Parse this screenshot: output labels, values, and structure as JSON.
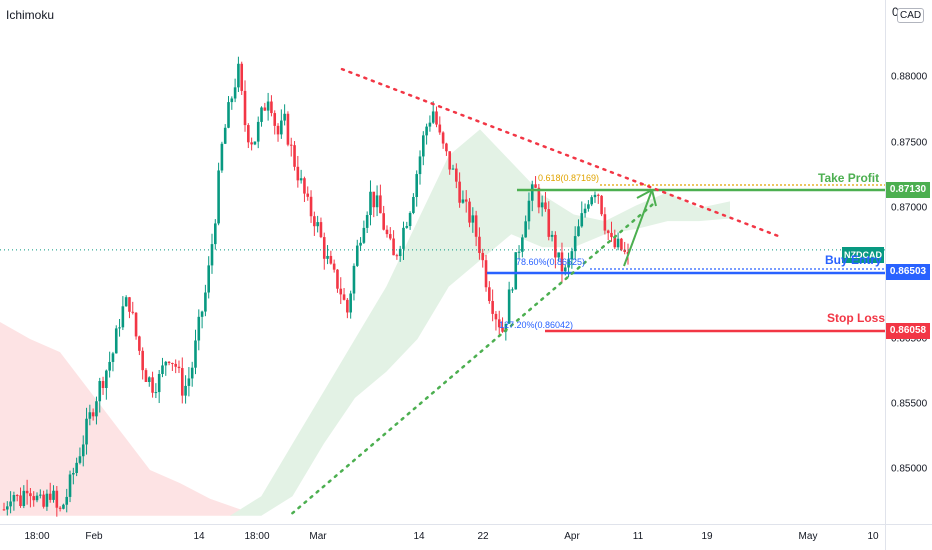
{
  "indicator": {
    "name": "Ichimoku"
  },
  "price_scale": {
    "zero_label": "0",
    "currency": "CAD"
  },
  "symbol": {
    "name": "NZDCAD"
  },
  "levels": {
    "take_profit": {
      "label": "Take Profit",
      "tag": "0.87130",
      "price": 0.8713,
      "color": "#4caf50"
    },
    "buy_entry": {
      "label": "Buy Entry",
      "tag": "0.86503",
      "price": 0.86503,
      "color": "#2962ff"
    },
    "stop_loss": {
      "label": "Stop Loss",
      "tag": "0.86058",
      "price": 0.86058,
      "color": "#f23645"
    }
  },
  "fib_labels": {
    "f618": {
      "text": "0.618(0.87169)",
      "color": "#e0a400"
    },
    "f786": {
      "text": "78.60%(0.86525)",
      "color": "#2962ff"
    },
    "f1272": {
      "text": "127.20%(0.86042)",
      "color": "#2962ff"
    }
  },
  "colors": {
    "up_candle": "#089981",
    "down_candle": "#f23645",
    "cloud_bull": "#e3f2e5",
    "cloud_bear": "#fde3e4",
    "resistance_line": "#f23645",
    "support_line": "#4caf50",
    "arrow": "#4caf50",
    "current_price_line": "#089981"
  },
  "chart_data": {
    "type": "candlestick",
    "title": "",
    "ylim": [
      0.8465,
      0.8835
    ],
    "y_ticks": [
      "0.88000",
      "0.87500",
      "0.87000",
      "0.86500",
      "0.85500",
      "0.85000"
    ],
    "x_ticks": [
      "18:00",
      "Feb",
      "14",
      "18:00",
      "Mar",
      "14",
      "22",
      "Apr",
      "11",
      "19",
      "May",
      "10"
    ],
    "current_price": 0.8668,
    "trend_lines": [
      {
        "name": "descending resistance",
        "from": [
          0.3864,
          0.8806
        ],
        "to": [
          0.8817,
          0.8678
        ]
      },
      {
        "name": "ascending support",
        "from": [
          0.3304,
          0.8467
        ],
        "to": [
          0.7379,
          0.8703
        ]
      }
    ],
    "close_path": [
      0.847,
      0.8485,
      0.8475,
      0.849,
      0.848,
      0.847,
      0.8485,
      0.8465,
      0.848,
      0.85,
      0.852,
      0.854,
      0.856,
      0.8575,
      0.859,
      0.862,
      0.863,
      0.86,
      0.8575,
      0.8565,
      0.857,
      0.859,
      0.858,
      0.856,
      0.8575,
      0.861,
      0.864,
      0.869,
      0.875,
      0.878,
      0.8806,
      0.876,
      0.875,
      0.877,
      0.879,
      0.8755,
      0.8765,
      0.874,
      0.872,
      0.87,
      0.869,
      0.8668,
      0.865,
      0.864,
      0.862,
      0.866,
      0.869,
      0.871,
      0.87,
      0.868,
      0.866,
      0.868,
      0.87,
      0.873,
      0.876,
      0.8775,
      0.875,
      0.8735,
      0.872,
      0.87,
      0.869,
      0.867,
      0.864,
      0.862,
      0.8606,
      0.864,
      0.867,
      0.87,
      0.8715,
      0.87,
      0.868,
      0.866,
      0.865,
      0.867,
      0.869,
      0.871,
      0.8717,
      0.869,
      0.867,
      0.867,
      0.866
    ],
    "cloud": [
      {
        "kind": "bear",
        "top": [
          0.8613,
          0.86,
          0.859,
          0.856,
          0.853,
          0.85,
          0.849,
          0.8478,
          0.847
        ],
        "bottom": [
          0.8465,
          0.8465,
          0.8465,
          0.8465,
          0.8465,
          0.8465,
          0.8465,
          0.8465,
          0.8465
        ]
      },
      {
        "kind": "bull",
        "top": [
          0.8465,
          0.848,
          0.852,
          0.856,
          0.86,
          0.864,
          0.869,
          0.874,
          0.876,
          0.8735,
          0.871,
          0.8695,
          0.869,
          0.8702,
          0.8712,
          0.87,
          0.8705
        ],
        "bottom": [
          0.8465,
          0.8465,
          0.848,
          0.852,
          0.8555,
          0.8575,
          0.86,
          0.864,
          0.866,
          0.868,
          0.867,
          0.867,
          0.868,
          0.8684,
          0.869,
          0.869,
          0.8692
        ]
      }
    ]
  }
}
